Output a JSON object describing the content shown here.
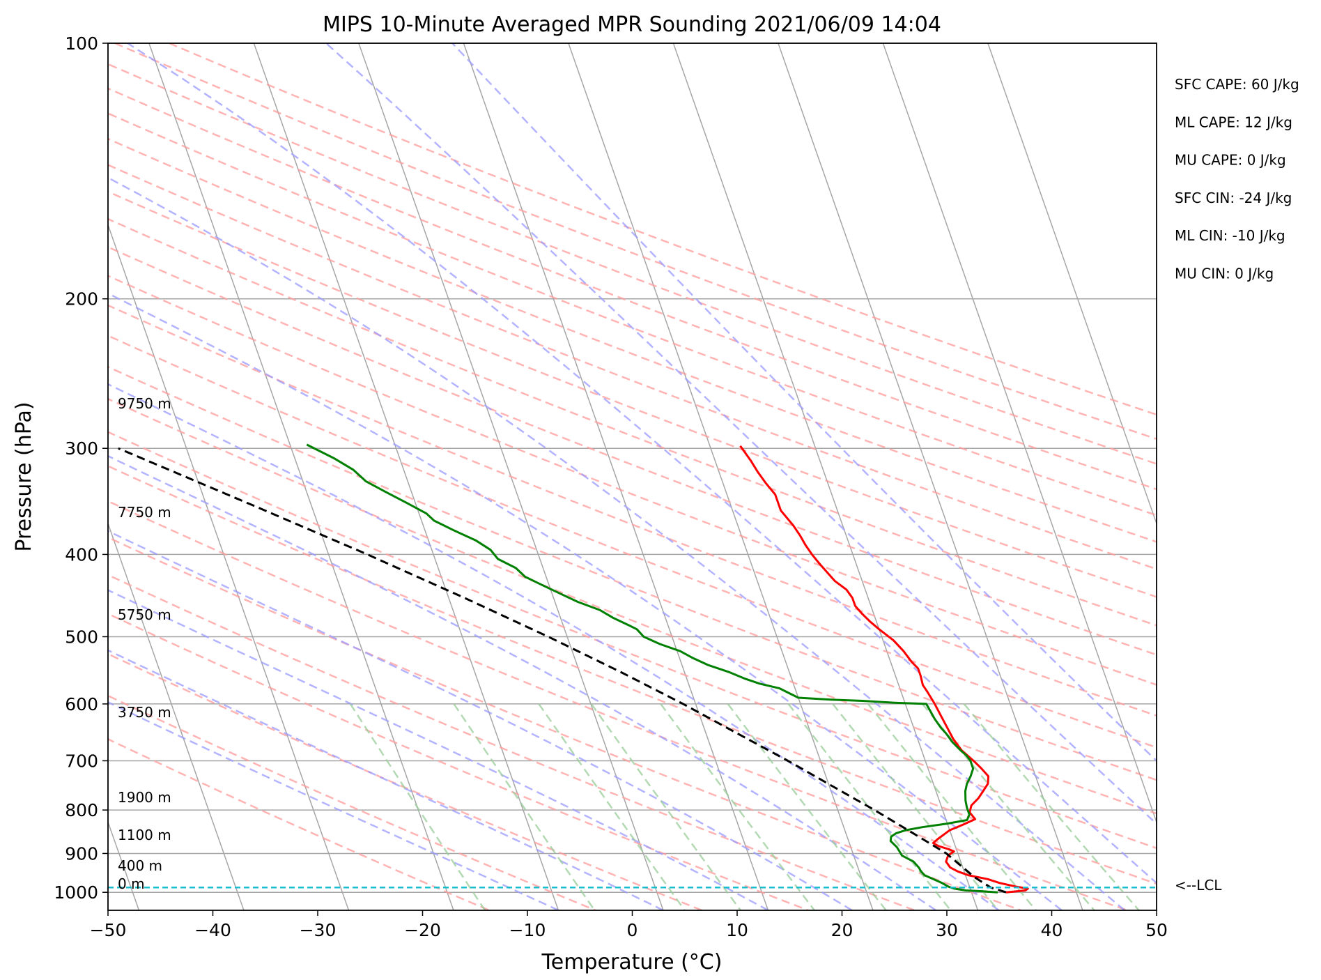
{
  "chart_data": {
    "type": "line",
    "subtype": "skew-t log-p",
    "title": "MIPS 10-Minute Averaged MPR Sounding 2021/06/09 14:04",
    "xlabel": "Temperature (°C)",
    "ylabel": "Pressure (hPa)",
    "xlim": [
      -50,
      50
    ],
    "ylim": [
      1050,
      100
    ],
    "y_scale": "log",
    "grid": true,
    "x_ticks": [
      "−50",
      "−40",
      "−30",
      "−20",
      "−10",
      "0",
      "10",
      "20",
      "30",
      "40",
      "50"
    ],
    "y_ticks": [
      "100",
      "200",
      "300",
      "400",
      "500",
      "600",
      "700",
      "800",
      "900",
      "1000"
    ],
    "height_labels": [
      "9750 m",
      "7750 m",
      "5750 m",
      "3750 m",
      "1900 m",
      "1100 m",
      "400 m",
      "0 m"
    ],
    "stats": [
      "SFC CAPE: 60 J/kg",
      "ML CAPE: 12 J/kg",
      "MU CAPE: 0 J/kg",
      "SFC CIN: -24 J/kg",
      "ML CIN: -10 J/kg",
      "MU CIN: 0 J/kg"
    ],
    "lcl_label": "<--LCL",
    "lcl_pressure": 987,
    "colors": {
      "temperature": "#ff0000",
      "dewpoint": "#008000",
      "parcel": "#000000",
      "lcl": "#17becf",
      "dry_adiabat": "#ff9999",
      "moist_adiabat": "#9999ff",
      "mixing_ratio": "#99cc99",
      "isotherm": "#a6a6a6"
    },
    "series": [
      {
        "key": "temperature",
        "points": [
          [
            1000,
            23.3
          ],
          [
            995,
            25.2
          ],
          [
            990,
            25.5
          ],
          [
            985,
            24.5
          ],
          [
            975,
            23.0
          ],
          [
            965,
            22.0
          ],
          [
            955,
            20.3
          ],
          [
            945,
            19.4
          ],
          [
            935,
            18.8
          ],
          [
            920,
            18.6
          ],
          [
            905,
            19.0
          ],
          [
            895,
            19.7
          ],
          [
            890,
            19.3
          ],
          [
            882,
            18.4
          ],
          [
            875,
            18.0
          ],
          [
            865,
            18.6
          ],
          [
            855,
            19.3
          ],
          [
            845,
            20.0
          ],
          [
            832,
            21.5
          ],
          [
            820,
            22.8
          ],
          [
            805,
            22.5
          ],
          [
            790,
            22.9
          ],
          [
            775,
            23.8
          ],
          [
            760,
            24.5
          ],
          [
            745,
            25.2
          ],
          [
            730,
            25.5
          ],
          [
            715,
            25.1
          ],
          [
            700,
            24.6
          ],
          [
            680,
            23.8
          ],
          [
            660,
            23.4
          ],
          [
            640,
            23.2
          ],
          [
            620,
            23.0
          ],
          [
            600,
            22.8
          ],
          [
            580,
            22.5
          ],
          [
            570,
            22.3
          ],
          [
            555,
            22.4
          ],
          [
            545,
            22.4
          ],
          [
            535,
            22.0
          ],
          [
            520,
            21.6
          ],
          [
            505,
            21.0
          ],
          [
            490,
            20.0
          ],
          [
            480,
            19.4
          ],
          [
            470,
            18.9
          ],
          [
            460,
            18.5
          ],
          [
            450,
            18.5
          ],
          [
            440,
            18.2
          ],
          [
            430,
            17.4
          ],
          [
            410,
            16.5
          ],
          [
            400,
            16.1
          ],
          [
            390,
            15.8
          ],
          [
            380,
            15.6
          ],
          [
            370,
            15.3
          ],
          [
            355,
            14.6
          ],
          [
            340,
            14.6
          ],
          [
            330,
            14.1
          ],
          [
            320,
            13.7
          ],
          [
            310,
            13.4
          ],
          [
            298,
            12.9
          ]
        ]
      },
      {
        "key": "dewpoint",
        "points": [
          [
            1000,
            22.5
          ],
          [
            997,
            21.0
          ],
          [
            995,
            19.5
          ],
          [
            990,
            18.5
          ],
          [
            985,
            18.0
          ],
          [
            975,
            17.5
          ],
          [
            965,
            16.8
          ],
          [
            955,
            16.1
          ],
          [
            945,
            15.9
          ],
          [
            935,
            15.8
          ],
          [
            920,
            15.5
          ],
          [
            905,
            14.6
          ],
          [
            895,
            14.5
          ],
          [
            885,
            14.4
          ],
          [
            870,
            14.0
          ],
          [
            860,
            14.2
          ],
          [
            852,
            14.8
          ],
          [
            845,
            15.8
          ],
          [
            838,
            17.5
          ],
          [
            830,
            20.0
          ],
          [
            822,
            22.0
          ],
          [
            810,
            22.4
          ],
          [
            795,
            22.4
          ],
          [
            780,
            22.5
          ],
          [
            760,
            22.8
          ],
          [
            745,
            23.2
          ],
          [
            730,
            23.8
          ],
          [
            715,
            24.3
          ],
          [
            700,
            24.3
          ],
          [
            690,
            24.1
          ],
          [
            680,
            23.7
          ],
          [
            665,
            23.2
          ],
          [
            650,
            22.9
          ],
          [
            640,
            22.6
          ],
          [
            625,
            22.3
          ],
          [
            600,
            22.0
          ],
          [
            598,
            19.0
          ],
          [
            595,
            16.0
          ],
          [
            593,
            13.0
          ],
          [
            590,
            10.0
          ],
          [
            585,
            9.5
          ],
          [
            575,
            8.5
          ],
          [
            568,
            6.8
          ],
          [
            560,
            5.5
          ],
          [
            550,
            4.2
          ],
          [
            540,
            2.5
          ],
          [
            530,
            1.3
          ],
          [
            520,
            0.3
          ],
          [
            510,
            -1.4
          ],
          [
            500,
            -2.7
          ],
          [
            490,
            -3.1
          ],
          [
            485,
            -3.7
          ],
          [
            475,
            -5.0
          ],
          [
            465,
            -6.0
          ],
          [
            455,
            -7.8
          ],
          [
            445,
            -9.2
          ],
          [
            435,
            -10.6
          ],
          [
            425,
            -12.0
          ],
          [
            415,
            -12.6
          ],
          [
            405,
            -14.0
          ],
          [
            395,
            -14.4
          ],
          [
            385,
            -15.5
          ],
          [
            375,
            -17.2
          ],
          [
            365,
            -18.8
          ],
          [
            358,
            -19.3
          ],
          [
            348,
            -20.8
          ],
          [
            338,
            -22.4
          ],
          [
            328,
            -24.0
          ],
          [
            318,
            -24.8
          ],
          [
            308,
            -26.3
          ],
          [
            297,
            -28.4
          ]
        ]
      },
      {
        "key": "parcel",
        "points": [
          [
            1000,
            23.3
          ],
          [
            987,
            22.0
          ],
          [
            960,
            20.8
          ],
          [
            900,
            18.9
          ],
          [
            850,
            16.3
          ],
          [
            800,
            13.5
          ],
          [
            750,
            10.3
          ],
          [
            700,
            6.9
          ],
          [
            650,
            3.0
          ],
          [
            600,
            -1.2
          ],
          [
            550,
            -6.1
          ],
          [
            500,
            -11.8
          ],
          [
            450,
            -18.5
          ],
          [
            400,
            -26.3
          ],
          [
            350,
            -35.6
          ],
          [
            300,
            -46.5
          ]
        ]
      }
    ]
  }
}
